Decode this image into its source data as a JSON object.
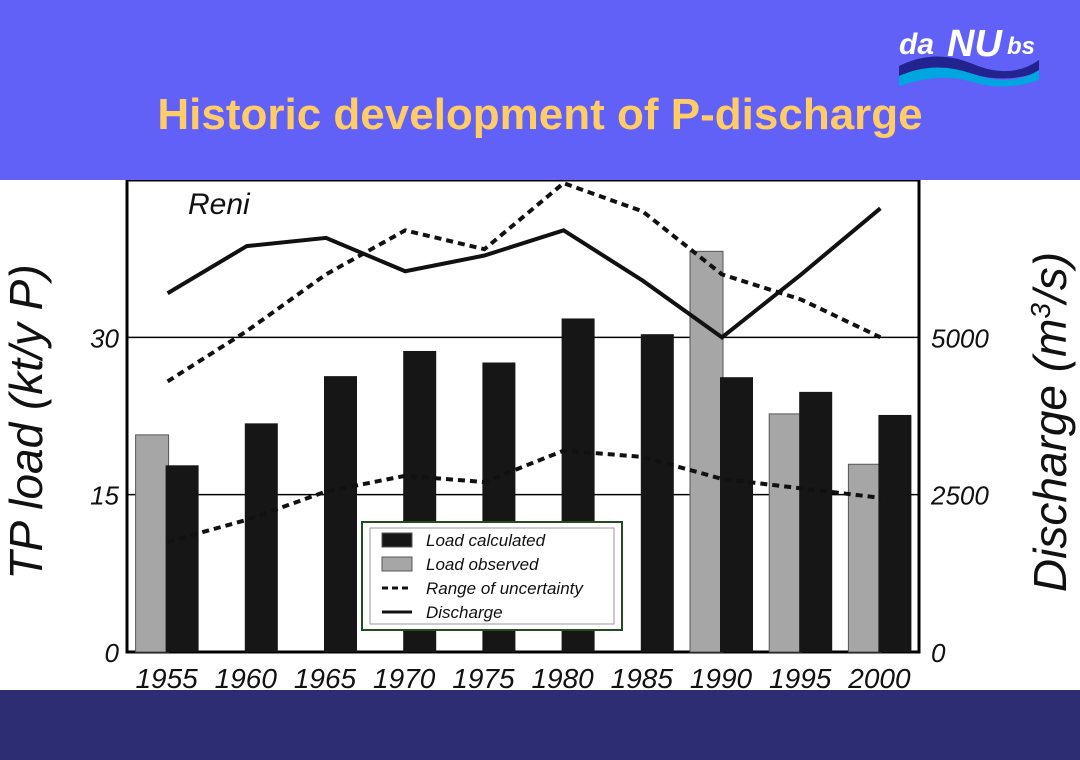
{
  "slide": {
    "title": "Historic development of P-discharge",
    "logo": {
      "prefix": "da",
      "middle": "NU",
      "suffix": "bs"
    }
  },
  "colors": {
    "header_bg": "#6161f8",
    "title": "#ffcc66",
    "footer_bg": "#2c2d72",
    "bar_calculated": "#161616",
    "bar_observed": "#a6a6a6",
    "legend_border": "#1f4f1f"
  },
  "chart_data": {
    "type": "bar",
    "annotation": "Reni",
    "categories": [
      "1955",
      "1960",
      "1965",
      "1970",
      "1975",
      "1980",
      "1985",
      "1990",
      "1995",
      "2000"
    ],
    "ylabel": "TP load (kt/y P)",
    "ylabel_right_main": "Discharge (m",
    "ylabel_right_sup": "3",
    "ylabel_right_end": "/s)",
    "ylim": [
      0,
      45
    ],
    "y_ticks": [
      0,
      15,
      30
    ],
    "y2lim": [
      0,
      7500
    ],
    "y2_ticks": [
      0,
      2500,
      5000
    ],
    "grid": "horizontal",
    "legend_position": "bottom-center",
    "series": [
      {
        "name": "Load calculated",
        "kind": "bar",
        "values": [
          17.8,
          21.8,
          26.3,
          28.7,
          27.6,
          31.8,
          30.3,
          26.2,
          24.8,
          22.6
        ]
      },
      {
        "name": "Load observed",
        "kind": "bar",
        "values": [
          20.7,
          null,
          null,
          null,
          null,
          null,
          null,
          38.2,
          22.7,
          17.9
        ]
      },
      {
        "name": "Range of uncertainty",
        "kind": "dashed-line",
        "upper": [
          4300,
          5100,
          6000,
          6700,
          6400,
          7450,
          7000,
          6000,
          5600,
          5000
        ],
        "lower": [
          1750,
          2100,
          2550,
          2800,
          2700,
          3200,
          3100,
          2750,
          2600,
          2450
        ]
      },
      {
        "name": "Discharge",
        "kind": "line",
        "axis": "right",
        "values": [
          5700,
          6450,
          6580,
          6050,
          6300,
          6700,
          5900,
          5000,
          6000,
          7050
        ]
      }
    ]
  }
}
